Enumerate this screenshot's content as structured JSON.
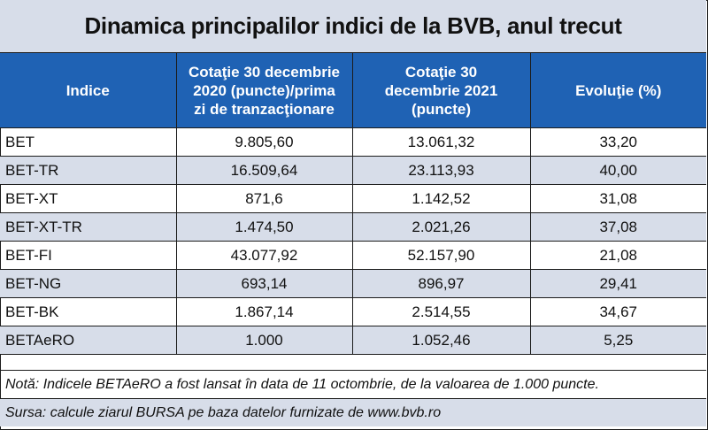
{
  "title": "Dinamica principalilor indici de la BVB, anul trecut",
  "columns": [
    "Indice",
    "Cotaţie 30 decembrie 2020 (puncte)/prima zi de tranzacţionare",
    "Cotaţie 30 decembrie 2021 (puncte)",
    "Evoluţie (%)"
  ],
  "rows": [
    [
      "BET",
      "9.805,60",
      "13.061,32",
      "33,20"
    ],
    [
      "BET-TR",
      "16.509,64",
      "23.113,93",
      "40,00"
    ],
    [
      "BET-XT",
      "871,6",
      "1.142,52",
      "31,08"
    ],
    [
      "BET-XT-TR",
      "1.474,50",
      "2.021,26",
      "37,08"
    ],
    [
      "BET-FI",
      "43.077,92",
      "52.157,90",
      "21,08"
    ],
    [
      "BET-NG",
      "693,14",
      "896,97",
      "29,41"
    ],
    [
      "BET-BK",
      "1.867,14",
      "2.514,55",
      "34,67"
    ],
    [
      "BETAeRO",
      "1.000",
      "1.052,46",
      "5,25"
    ]
  ],
  "note": "Notă: Indicele BETAeRO a fost lansat în data de 11 octombrie, de la valoarea de 1.000 puncte.",
  "source": "Sursa: calcule ziarul BURSA pe baza datelor furnizate de www.bvb.ro",
  "colors": {
    "header_blue": "#1f62b4",
    "band_light": "#d7dde9",
    "border": "#1c1c1c"
  }
}
